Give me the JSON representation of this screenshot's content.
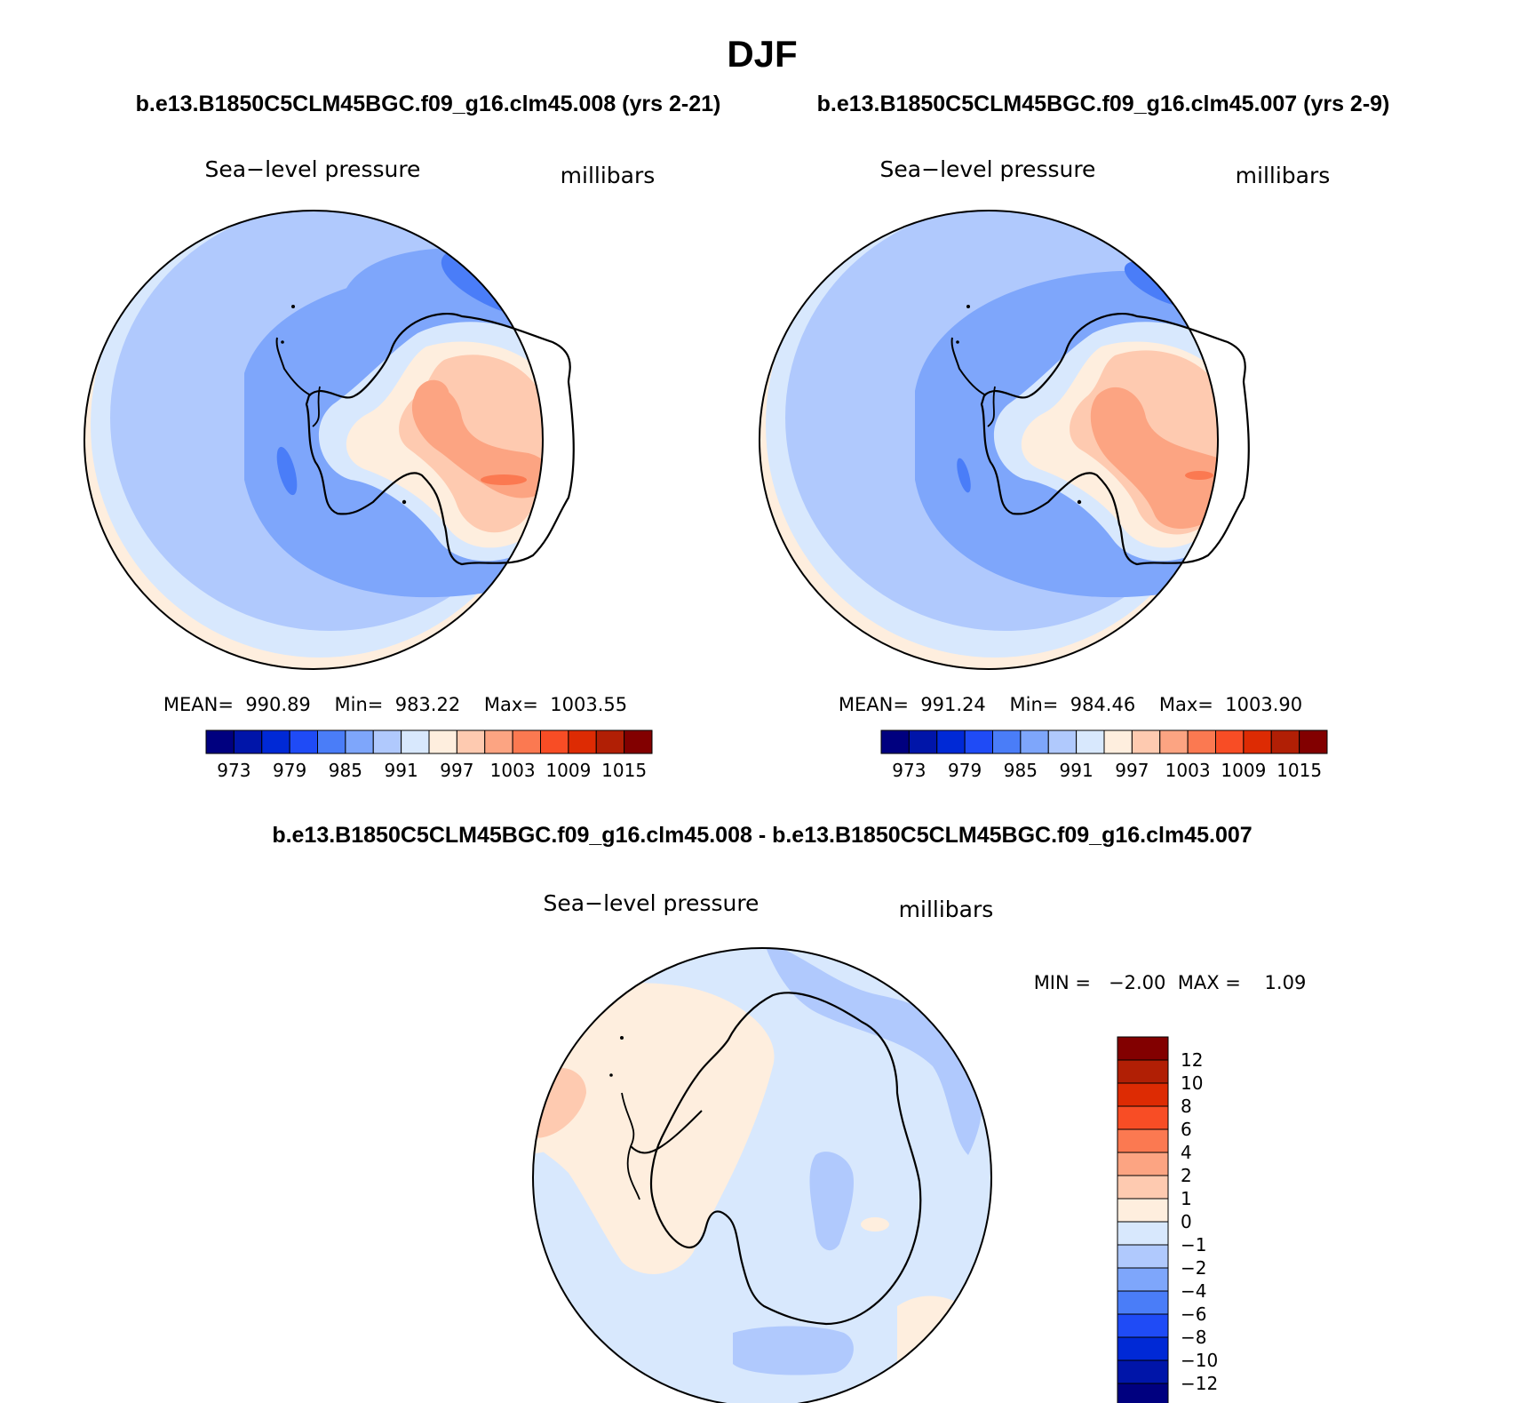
{
  "title": "DJF",
  "panels": [
    {
      "case_title": "b.e13.B1850C5CLM45BGC.f09_g16.clm45.008 (yrs 2-21)",
      "variable": "Sea−level pressure",
      "units": "millibars",
      "stats": {
        "mean": "990.89",
        "min": "983.22",
        "max": "1003.55"
      },
      "stats_text": "MEAN=  990.89    Min=  983.22    Max=  1003.55"
    },
    {
      "case_title": "b.e13.B1850C5CLM45BGC.f09_g16.clm45.007 (yrs 2-9)",
      "variable": "Sea−level pressure",
      "units": "millibars",
      "stats": {
        "mean": "991.24",
        "min": "984.46",
        "max": "1003.90"
      },
      "stats_text": "MEAN=  991.24    Min=  984.46    Max=  1003.90"
    }
  ],
  "diff_panel": {
    "case_title": "b.e13.B1850C5CLM45BGC.f09_g16.clm45.008 - b.e13.B1850C5CLM45BGC.f09_g16.clm45.007",
    "variable": "Sea−level pressure",
    "units": "millibars",
    "min_max_text": "MIN =   −2.00  MAX =    1.09"
  },
  "colorbar_abs": {
    "colors": [
      "#00007f",
      "#0015a9",
      "#0029d6",
      "#1f4bf6",
      "#4a7df8",
      "#7ea6fb",
      "#b0c9fd",
      "#d8e8fd",
      "#feeede",
      "#fecab0",
      "#fca482",
      "#fb7951",
      "#f84d25",
      "#dd2b03",
      "#b11f05",
      "#820000"
    ],
    "tick_labels": [
      "973",
      "979",
      "985",
      "991",
      "997",
      "1003",
      "1009",
      "1015"
    ]
  },
  "colorbar_diff": {
    "colors": [
      "#820000",
      "#b11f05",
      "#dd2b03",
      "#f84d25",
      "#fb7951",
      "#fca482",
      "#fecab0",
      "#feeede",
      "#d8e8fd",
      "#b0c9fd",
      "#7ea6fb",
      "#4a7df8",
      "#1f4bf6",
      "#0029d6",
      "#0015a9",
      "#00007f"
    ],
    "tick_labels": [
      "12",
      "10",
      "8",
      "6",
      "4",
      "2",
      "1",
      "0",
      "−1",
      "−2",
      "−4",
      "−6",
      "−8",
      "−10",
      "−12"
    ]
  }
}
